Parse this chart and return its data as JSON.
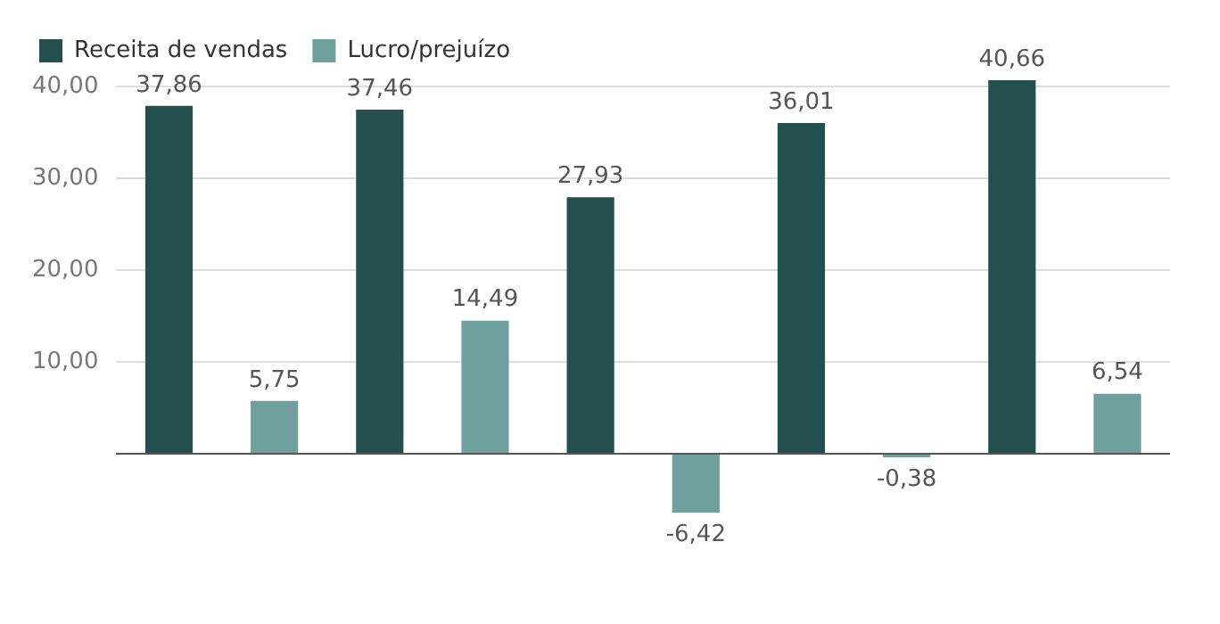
{
  "chart_data": {
    "type": "bar",
    "categories": [
      null,
      null,
      null,
      null,
      null
    ],
    "series": [
      {
        "name": "Receita de vendas",
        "color": "#234f4f",
        "values": [
          37.86,
          37.46,
          27.93,
          36.01,
          40.66
        ],
        "value_labels": [
          "37,86",
          "37,46",
          "27,93",
          "36,01",
          "40,66"
        ]
      },
      {
        "name": "Lucro/prejuízo",
        "color": "#6fa09d",
        "values": [
          5.75,
          14.49,
          -6.42,
          -0.38,
          6.54
        ],
        "value_labels": [
          "5,75",
          "14,49",
          "-6,42",
          "-0,38",
          "6,54"
        ]
      }
    ],
    "ylim": [
      -6.42,
      40.66
    ],
    "yticks": [
      {
        "value": 0,
        "label": null
      },
      {
        "value": 10,
        "label": "10,00"
      },
      {
        "value": 20,
        "label": "20,00"
      },
      {
        "value": 30,
        "label": "30,00"
      },
      {
        "value": 40,
        "label": "40,00"
      }
    ],
    "grid": "y",
    "legend": "top left"
  }
}
